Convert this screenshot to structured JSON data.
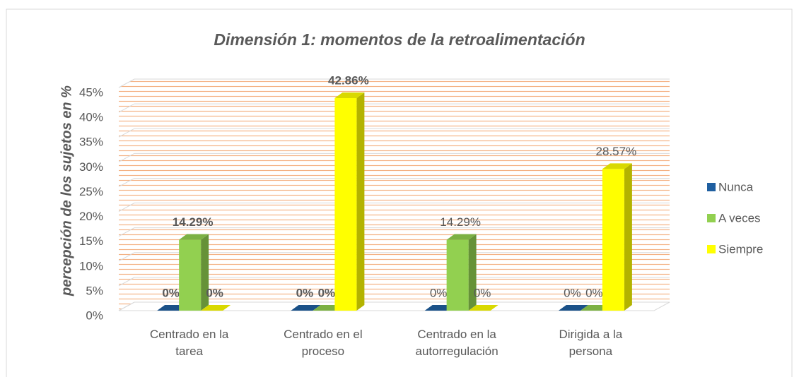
{
  "chart_data": {
    "type": "bar3d",
    "title": "Dimensión 1: momentos de la retroalimentación",
    "y_label": "percepción de los sujetos en %",
    "categories": [
      "Centrado en la tarea",
      "Centrado en el proceso",
      "Centrado en la autorregulación",
      "Dirigida a la persona"
    ],
    "series": [
      {
        "name": "Nunca",
        "color": "#1f5fa0",
        "values": [
          0,
          0,
          0,
          0
        ],
        "value_labels": [
          "0%",
          "0%",
          "0%",
          "0%"
        ]
      },
      {
        "name": "A veces",
        "color": "#92d050",
        "values": [
          14.29,
          0,
          14.29,
          0
        ],
        "value_labels": [
          "14.29%",
          "0%",
          "14.29%",
          "0%"
        ]
      },
      {
        "name": "Siempre",
        "color": "#ffff00",
        "values": [
          0,
          42.86,
          0,
          28.57
        ],
        "value_labels": [
          "0%",
          "42.86%",
          "0%",
          "28.57%"
        ]
      }
    ],
    "bold_categories": [
      true,
      true,
      false,
      false
    ],
    "ylim": [
      0,
      45
    ],
    "yticks": [
      {
        "value": 0,
        "label": "0%"
      },
      {
        "value": 5,
        "label": "5%"
      },
      {
        "value": 10,
        "label": "10%"
      },
      {
        "value": 15,
        "label": "15%"
      },
      {
        "value": 20,
        "label": "20%"
      },
      {
        "value": 25,
        "label": "25%"
      },
      {
        "value": 30,
        "label": "30%"
      },
      {
        "value": 35,
        "label": "35%"
      },
      {
        "value": 40,
        "label": "40%"
      },
      {
        "value": 45,
        "label": "45%"
      }
    ],
    "grid": true,
    "legend": "right"
  }
}
